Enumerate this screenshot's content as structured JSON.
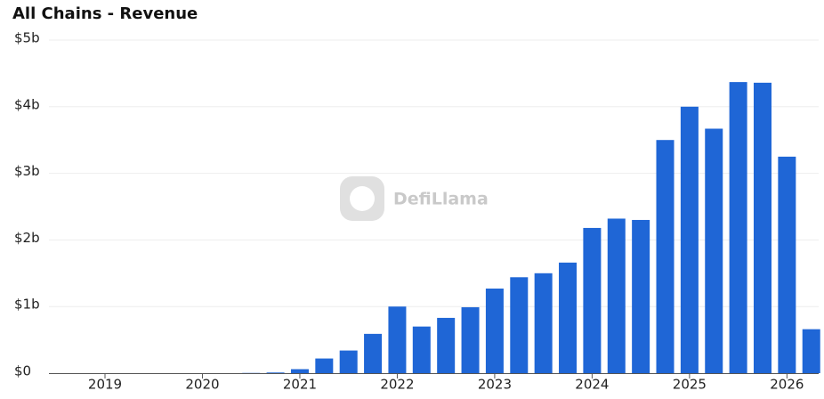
{
  "chart_data": {
    "type": "bar",
    "title": "All Chains - Revenue",
    "watermark": "DefiLlama",
    "categories": [
      "2019",
      null,
      null,
      null,
      "2020",
      null,
      null,
      null,
      "2021",
      null,
      null,
      null,
      "2022",
      null,
      null,
      null,
      "2023",
      null,
      null,
      null,
      "2024",
      null,
      null,
      null,
      "2025",
      null,
      null,
      null,
      "2026",
      null
    ],
    "values": [
      0,
      0,
      0,
      0,
      0,
      0,
      0.003,
      0.01,
      0.06,
      0.22,
      0.34,
      0.59,
      1.0,
      0.7,
      0.83,
      0.99,
      1.27,
      1.44,
      1.5,
      1.66,
      2.18,
      2.32,
      2.3,
      3.5,
      4.0,
      3.67,
      4.37,
      4.36,
      3.25,
      0.66
    ],
    "color": "#1f66d6",
    "ylim": [
      0,
      5
    ],
    "yticks": [
      {
        "value": 0,
        "label": "$0"
      },
      {
        "value": 1,
        "label": "$1b"
      },
      {
        "value": 2,
        "label": "$2b"
      },
      {
        "value": 3,
        "label": "$3b"
      },
      {
        "value": 4,
        "label": "$4b"
      },
      {
        "value": 5,
        "label": "$5b"
      }
    ],
    "grid": true
  }
}
